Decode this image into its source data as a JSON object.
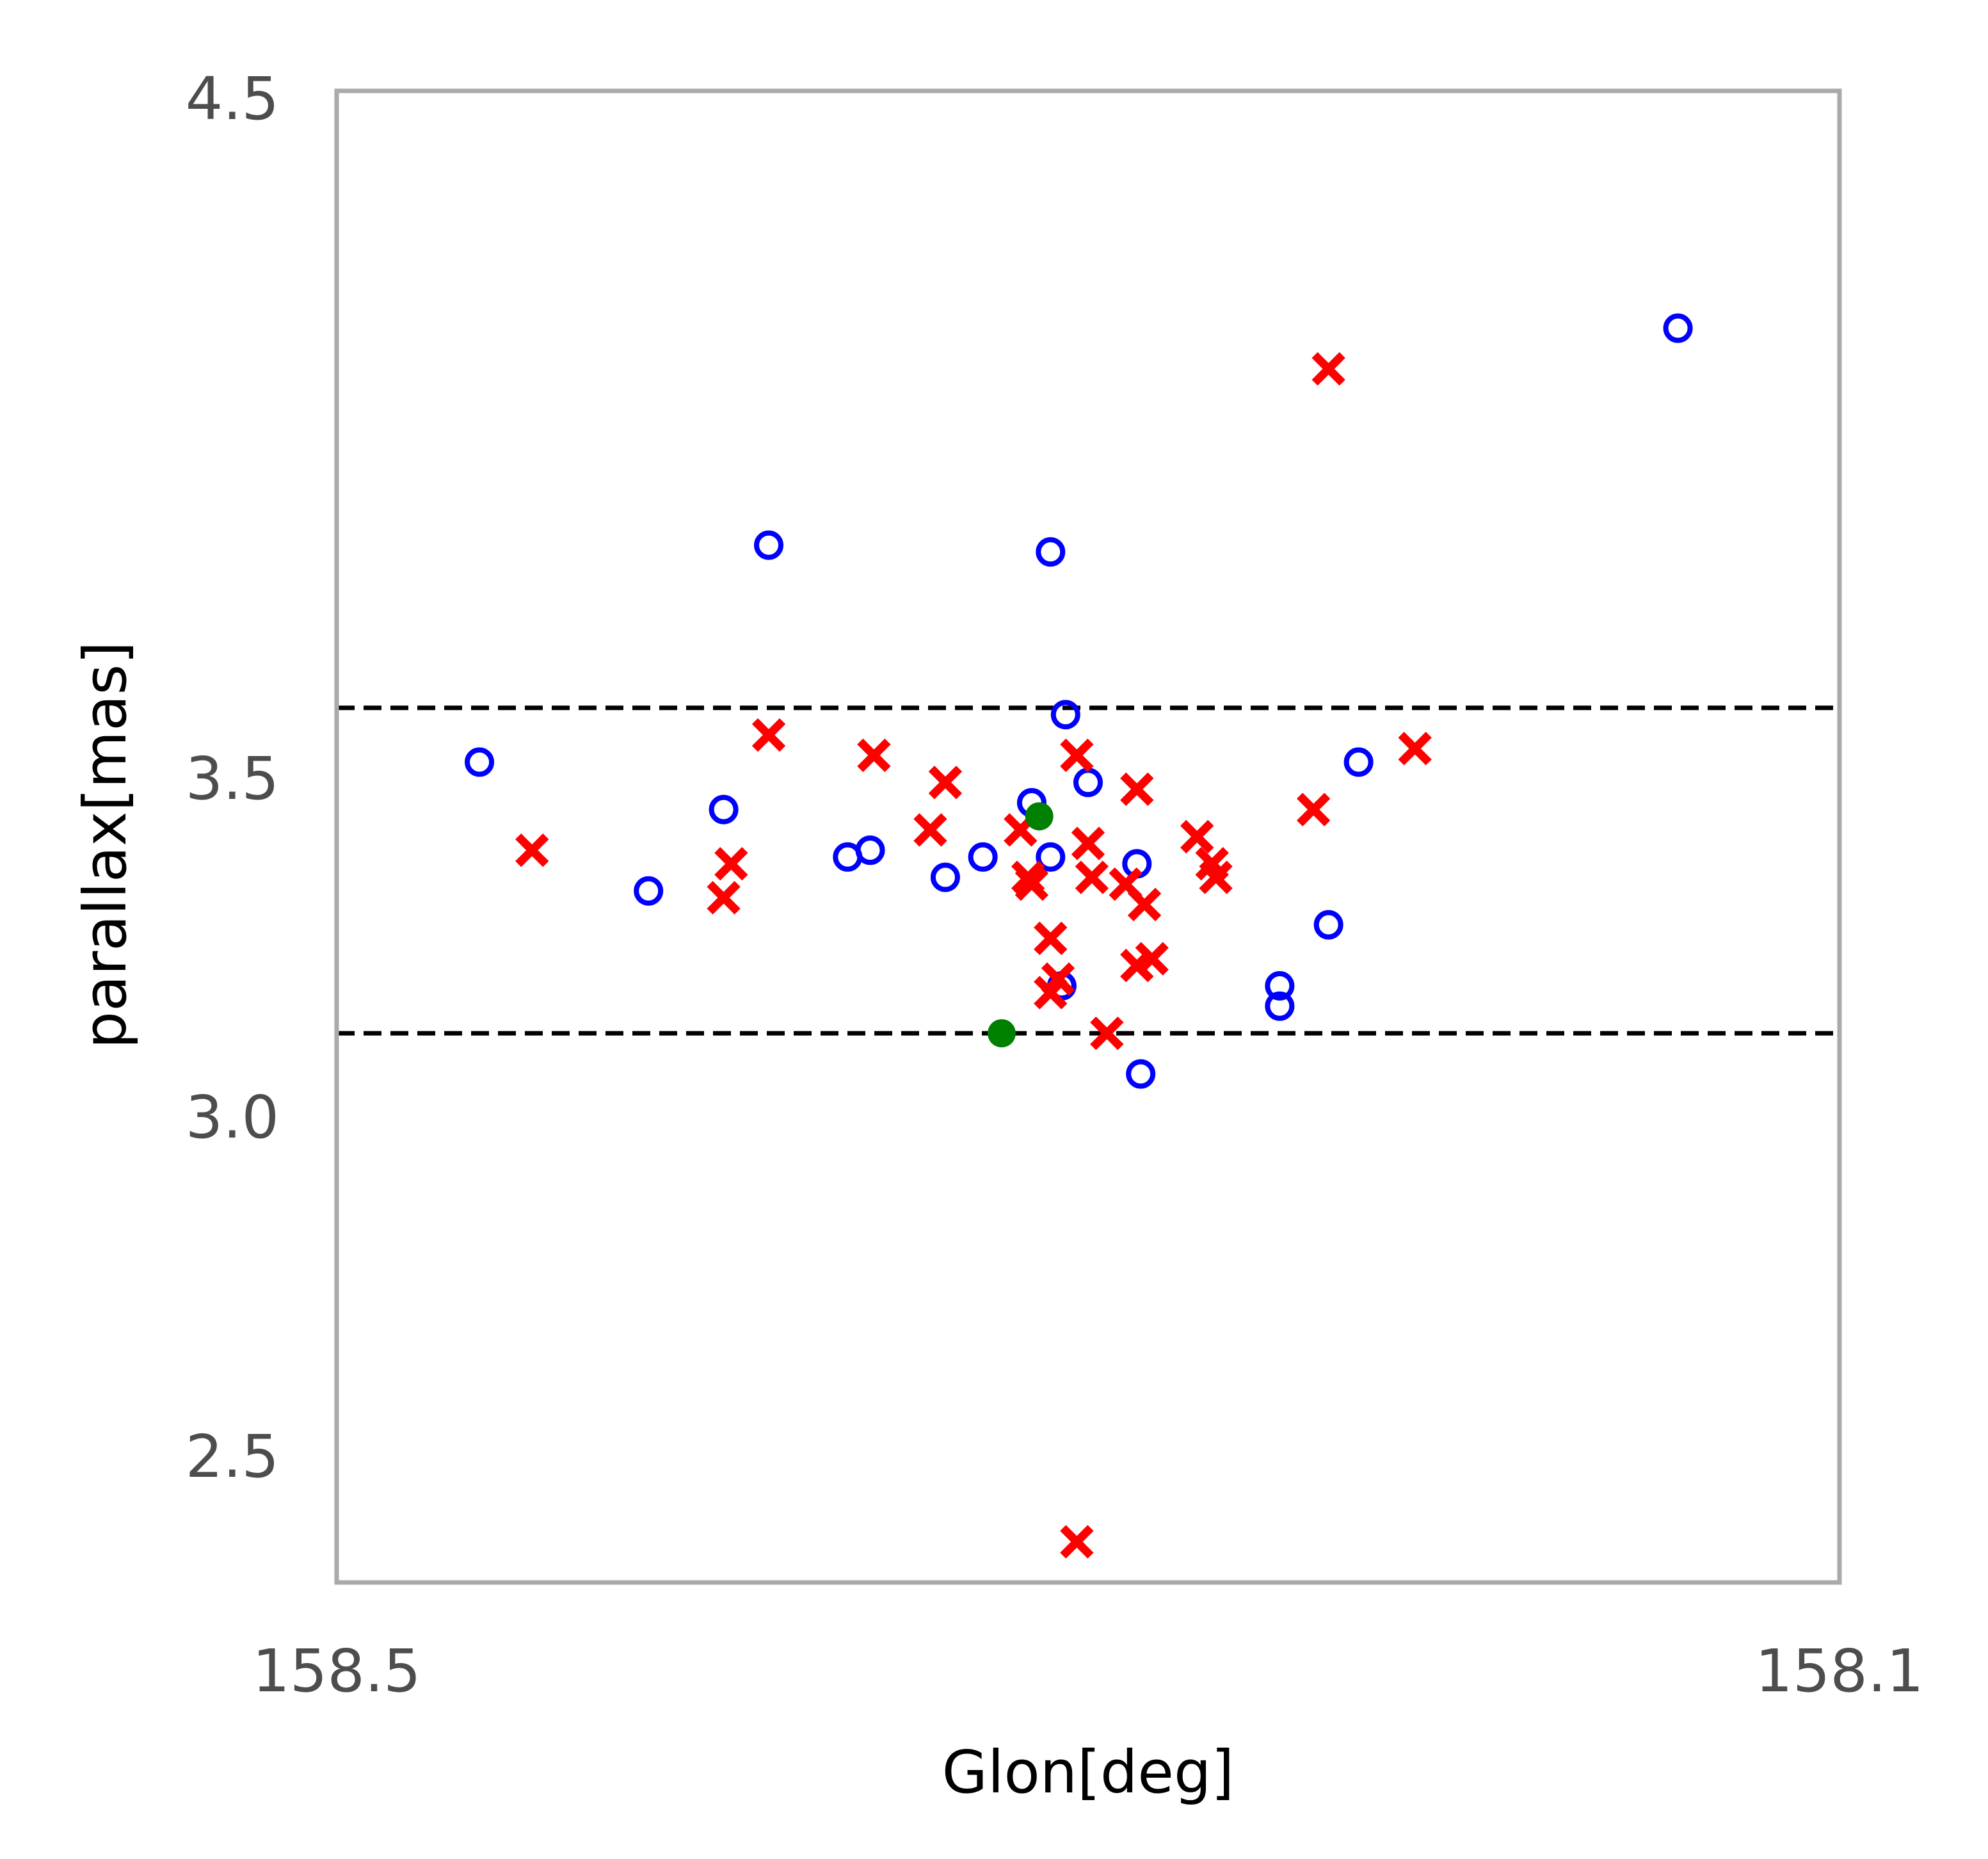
{
  "chart_data": {
    "type": "scatter",
    "xlabel": "Glon[deg]",
    "ylabel": "parallax[mas]",
    "xlim": [
      158.5,
      158.1
    ],
    "ylim": [
      2.3,
      4.5
    ],
    "x_reversed": true,
    "x_ticks": [
      "158.5",
      "158.1"
    ],
    "y_ticks": [
      "4.5",
      "3.5",
      "3.0",
      "2.5"
    ],
    "grid": false,
    "frame_color": "#aaaaaa",
    "hlines": [
      {
        "y": 3.59,
        "style": "dashed",
        "color": "#000000"
      },
      {
        "y": 3.11,
        "style": "dashed",
        "color": "#000000"
      }
    ],
    "series": [
      {
        "marker": "open-circle",
        "color": "#0000ff",
        "points": [
          {
            "x": 158.462,
            "y": 3.51
          },
          {
            "x": 158.417,
            "y": 3.32
          },
          {
            "x": 158.397,
            "y": 3.44
          },
          {
            "x": 158.385,
            "y": 3.83
          },
          {
            "x": 158.364,
            "y": 3.37
          },
          {
            "x": 158.358,
            "y": 3.38
          },
          {
            "x": 158.338,
            "y": 3.34
          },
          {
            "x": 158.328,
            "y": 3.37
          },
          {
            "x": 158.315,
            "y": 3.45
          },
          {
            "x": 158.31,
            "y": 3.82
          },
          {
            "x": 158.31,
            "y": 3.37
          },
          {
            "x": 158.306,
            "y": 3.58
          },
          {
            "x": 158.307,
            "y": 3.18
          },
          {
            "x": 158.3,
            "y": 3.48
          },
          {
            "x": 158.287,
            "y": 3.36
          },
          {
            "x": 158.286,
            "y": 3.05
          },
          {
            "x": 158.249,
            "y": 3.18
          },
          {
            "x": 158.249,
            "y": 3.15
          },
          {
            "x": 158.236,
            "y": 3.27
          },
          {
            "x": 158.228,
            "y": 3.51
          },
          {
            "x": 158.143,
            "y": 4.15
          }
        ]
      },
      {
        "marker": "x",
        "color": "#ff0000",
        "points": [
          {
            "x": 158.448,
            "y": 3.38
          },
          {
            "x": 158.397,
            "y": 3.31
          },
          {
            "x": 158.395,
            "y": 3.36
          },
          {
            "x": 158.385,
            "y": 3.55
          },
          {
            "x": 158.357,
            "y": 3.52
          },
          {
            "x": 158.342,
            "y": 3.41
          },
          {
            "x": 158.338,
            "y": 3.48
          },
          {
            "x": 158.318,
            "y": 3.41
          },
          {
            "x": 158.316,
            "y": 3.34
          },
          {
            "x": 158.315,
            "y": 3.33
          },
          {
            "x": 158.31,
            "y": 3.25
          },
          {
            "x": 158.31,
            "y": 3.17
          },
          {
            "x": 158.308,
            "y": 3.19
          },
          {
            "x": 158.303,
            "y": 3.52
          },
          {
            "x": 158.303,
            "y": 2.36
          },
          {
            "x": 158.3,
            "y": 3.39
          },
          {
            "x": 158.299,
            "y": 3.34
          },
          {
            "x": 158.295,
            "y": 3.11
          },
          {
            "x": 158.29,
            "y": 3.33
          },
          {
            "x": 158.287,
            "y": 3.47
          },
          {
            "x": 158.287,
            "y": 3.21
          },
          {
            "x": 158.285,
            "y": 3.3
          },
          {
            "x": 158.283,
            "y": 3.22
          },
          {
            "x": 158.271,
            "y": 3.4
          },
          {
            "x": 158.267,
            "y": 3.36
          },
          {
            "x": 158.266,
            "y": 3.34
          },
          {
            "x": 158.24,
            "y": 3.44
          },
          {
            "x": 158.236,
            "y": 4.09
          },
          {
            "x": 158.213,
            "y": 3.53
          }
        ]
      },
      {
        "marker": "filled-circle",
        "color": "#008000",
        "points": [
          {
            "x": 158.323,
            "y": 3.11
          },
          {
            "x": 158.313,
            "y": 3.43
          }
        ]
      }
    ]
  }
}
